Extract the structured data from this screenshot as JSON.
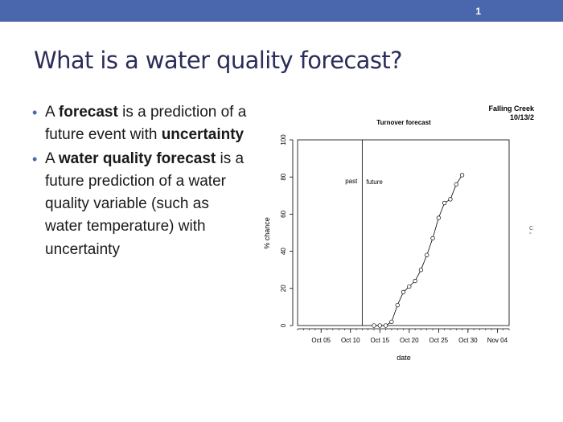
{
  "slide": {
    "number": "1",
    "title": "What is a water quality forecast?",
    "bullets": [
      {
        "parts": [
          {
            "text": "A ",
            "bold": false
          },
          {
            "text": "forecast",
            "bold": true
          },
          {
            "text": " is a prediction of a future event with ",
            "bold": false
          },
          {
            "text": "uncertainty",
            "bold": true
          }
        ]
      },
      {
        "parts": [
          {
            "text": "A ",
            "bold": false
          },
          {
            "text": "water quality forecast",
            "bold": true
          },
          {
            "text": " is a future prediction of a water quality variable (such as water temperature) with uncertainty",
            "bold": false
          }
        ]
      }
    ]
  },
  "colors": {
    "topbar": "#4a66ac",
    "title": "#2b2d5a",
    "bullet_dot": "#4a66ac",
    "chart_ink": "#000000"
  },
  "chart_corner": {
    "site": "Falling Creek",
    "date": "10/13/2",
    "edge_glyph": "C"
  },
  "chart_data": {
    "type": "line",
    "title": "Turnover forecast",
    "xlabel": "date",
    "ylabel": "% chance",
    "x_axis": "date",
    "xlim": [
      "2018-10-01",
      "2018-11-06"
    ],
    "ylim": [
      0,
      100
    ],
    "xticks": [
      {
        "date": "2018-10-05",
        "label": "Oct 05"
      },
      {
        "date": "2018-10-10",
        "label": "Oct 10"
      },
      {
        "date": "2018-10-15",
        "label": "Oct 15"
      },
      {
        "date": "2018-10-20",
        "label": "Oct 20"
      },
      {
        "date": "2018-10-25",
        "label": "Oct 25"
      },
      {
        "date": "2018-10-30",
        "label": "Oct 30"
      },
      {
        "date": "2018-11-04",
        "label": "Nov 04"
      }
    ],
    "yticks": [
      0,
      20,
      40,
      60,
      80,
      100
    ],
    "divider": {
      "date": "2018-10-12",
      "left_label": "past",
      "right_label": "future"
    },
    "series": [
      {
        "points": [
          {
            "x": "2018-10-14",
            "y": 0
          },
          {
            "x": "2018-10-15",
            "y": 0
          },
          {
            "x": "2018-10-16",
            "y": 0
          },
          {
            "x": "2018-10-17",
            "y": 2
          },
          {
            "x": "2018-10-18",
            "y": 11
          },
          {
            "x": "2018-10-19",
            "y": 18
          },
          {
            "x": "2018-10-20",
            "y": 21
          },
          {
            "x": "2018-10-21",
            "y": 24
          },
          {
            "x": "2018-10-22",
            "y": 30
          },
          {
            "x": "2018-10-23",
            "y": 38
          },
          {
            "x": "2018-10-24",
            "y": 47
          },
          {
            "x": "2018-10-25",
            "y": 58
          },
          {
            "x": "2018-10-26",
            "y": 66
          },
          {
            "x": "2018-10-27",
            "y": 68
          },
          {
            "x": "2018-10-28",
            "y": 76
          },
          {
            "x": "2018-10-29",
            "y": 81
          }
        ]
      }
    ]
  }
}
